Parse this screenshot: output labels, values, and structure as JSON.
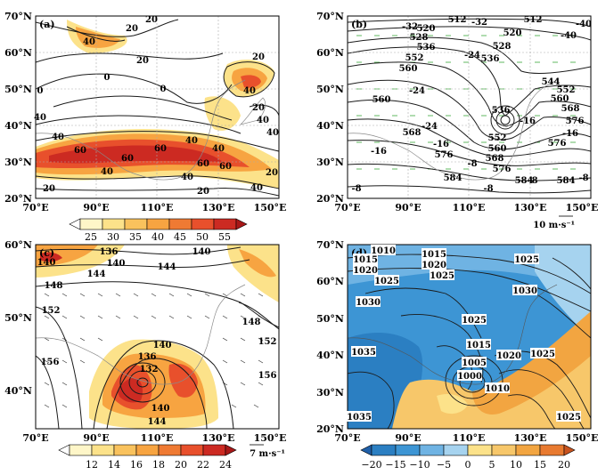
{
  "panels": [
    {
      "label": "(a)",
      "lat_ticks": [
        "70°N",
        "60°N",
        "50°N",
        "40°N",
        "30°N",
        "20°N"
      ],
      "lon_ticks": [
        "70°E",
        "90°E",
        "110°E",
        "130°E",
        "150°E"
      ],
      "contour_labels": [
        "20",
        "40",
        "20",
        "0",
        "0",
        "0",
        "20",
        "40",
        "20",
        "40",
        "40",
        "60",
        "60",
        "60",
        "40",
        "60",
        "40",
        "60",
        "40",
        "40",
        "20",
        "20",
        "40",
        "20",
        "40",
        "40",
        "20"
      ],
      "colorbar": [
        "25",
        "30",
        "35",
        "40",
        "45",
        "50",
        "55"
      ]
    },
    {
      "label": "(b)",
      "lat_ticks": [
        "70°N",
        "60°N",
        "50°N",
        "40°N",
        "30°N",
        "20°N"
      ],
      "lon_ticks": [
        "70°E",
        "90°E",
        "110°E",
        "130°E",
        "150°E"
      ],
      "contour_labels": [
        "512",
        "520",
        "-32",
        "512",
        "-40",
        "-32",
        "528",
        "520",
        "536",
        "528",
        "-40",
        "552",
        "536",
        "-24",
        "560",
        "544",
        "552",
        "-24",
        "560",
        "560",
        "568",
        "536",
        "-16",
        "576",
        "568",
        "-24",
        "552",
        "-16",
        "-16",
        "560",
        "576",
        "-16",
        "576",
        "568",
        "-8",
        "576",
        "584",
        "-8",
        "584",
        "-8",
        "584",
        "-8",
        "-8"
      ],
      "vector_ref": "10 m·s⁻¹"
    },
    {
      "label": "(c)",
      "lat_ticks": [
        "60°N",
        "50°N",
        "40°N"
      ],
      "lon_ticks": [
        "70°E",
        "90°E",
        "110°E",
        "130°E",
        "150°E"
      ],
      "contour_labels": [
        "136",
        "140",
        "140",
        "144",
        "140",
        "148",
        "152",
        "148",
        "152",
        "144",
        "156",
        "140",
        "136",
        "156",
        "132",
        "140",
        "144"
      ],
      "colorbar": [
        "12",
        "14",
        "16",
        "18",
        "20",
        "22",
        "24"
      ],
      "vector_ref": "7 m·s⁻¹"
    },
    {
      "label": "(d)",
      "lat_ticks": [
        "70°N",
        "60°N",
        "50°N",
        "40°N",
        "30°N",
        "20°N"
      ],
      "lon_ticks": [
        "70°E",
        "90°E",
        "110°E",
        "130°E",
        "150°E"
      ],
      "contour_labels": [
        "1010",
        "1015",
        "1015",
        "1020",
        "1020",
        "1025",
        "1025",
        "1025",
        "1030",
        "1030",
        "1025",
        "1035",
        "1015",
        "1005",
        "1020",
        "1025",
        "1000",
        "1010",
        "1035",
        "1025"
      ],
      "colorbar": [
        "−20",
        "−15",
        "−10",
        "−5",
        "0",
        "5",
        "10",
        "15",
        "20"
      ]
    }
  ]
}
